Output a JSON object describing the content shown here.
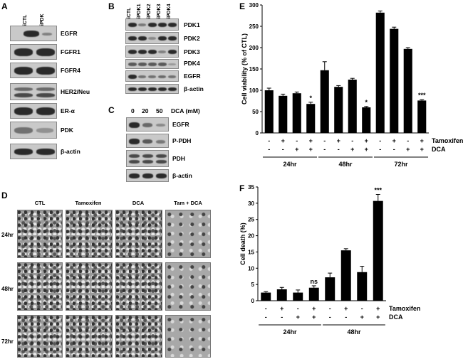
{
  "panels": {
    "A": "A",
    "B": "B",
    "C": "C",
    "D": "D",
    "E": "E",
    "F": "F"
  },
  "panel_a": {
    "lanes": [
      "siCTL",
      "siPDK"
    ],
    "proteins": [
      "EGFR",
      "FGFR1",
      "FGFR4",
      "HER2/Neu",
      "ER-α",
      "PDK",
      "β-actin"
    ]
  },
  "panel_b": {
    "lanes": [
      "siCTL",
      "siPDK1",
      "siPDK2",
      "siPDK3",
      "siPDK4"
    ],
    "proteins": [
      "PDK1",
      "PDK2",
      "PDK3",
      "PDK4",
      "EGFR",
      "β-actin"
    ]
  },
  "panel_c": {
    "doses": [
      "0",
      "20",
      "50"
    ],
    "dose_label": "DCA (mM)",
    "proteins": [
      "EGFR",
      "P-PDH",
      "PDH",
      "β-actin"
    ]
  },
  "panel_d": {
    "columns": [
      "CTL",
      "Tamoxifen",
      "DCA",
      "Tam + DCA"
    ],
    "rows": [
      "24hr",
      "48hr",
      "72hr"
    ]
  },
  "chart_data": [
    {
      "panel": "E",
      "type": "bar",
      "ylabel": "Cell viability (% of CTL)",
      "ylim": [
        0,
        300
      ],
      "yticks": [
        0,
        50,
        100,
        150,
        200,
        250,
        300
      ],
      "categories": [
        "24hr-1",
        "24hr-2",
        "24hr-3",
        "24hr-4",
        "48hr-1",
        "48hr-2",
        "48hr-3",
        "48hr-4",
        "72hr-1",
        "72hr-2",
        "72hr-3",
        "72hr-4"
      ],
      "values": [
        100,
        87,
        93,
        68,
        147,
        108,
        125,
        60,
        282,
        244,
        197,
        76
      ],
      "errors": [
        5,
        4,
        3,
        4,
        20,
        3,
        3,
        2,
        4,
        4,
        3,
        2
      ],
      "tamoxifen": [
        "-",
        "+",
        "-",
        "+",
        "-",
        "+",
        "-",
        "+",
        "-",
        "+",
        "-",
        "+"
      ],
      "dca": [
        "-",
        "-",
        "+",
        "+",
        "-",
        "-",
        "+",
        "+",
        "-",
        "-",
        "+",
        "+"
      ],
      "annotations": [
        "",
        "",
        "",
        "*",
        "",
        "",
        "",
        "*",
        "",
        "",
        "",
        "***"
      ],
      "row_labels": [
        "Tamoxifen",
        "DCA"
      ],
      "groups": [
        "24hr",
        "48hr",
        "72hr"
      ]
    },
    {
      "panel": "F",
      "type": "bar",
      "ylabel": "Cell death (%)",
      "ylim": [
        0,
        35
      ],
      "yticks": [
        0,
        5,
        10,
        15,
        20,
        25,
        30,
        35
      ],
      "categories": [
        "24hr-1",
        "24hr-2",
        "24hr-3",
        "24hr-4",
        "48hr-1",
        "48hr-2",
        "48hr-3",
        "48hr-4"
      ],
      "values": [
        2.5,
        3.5,
        2.5,
        4.0,
        7.2,
        15.5,
        8.8,
        30.7
      ],
      "errors": [
        0.3,
        0.6,
        0.8,
        0.6,
        1.3,
        0.5,
        1.8,
        2.0
      ],
      "tamoxifen": [
        "-",
        "+",
        "-",
        "+",
        "-",
        "+",
        "-",
        "+"
      ],
      "dca": [
        "-",
        "-",
        "+",
        "+",
        "-",
        "-",
        "+",
        "+"
      ],
      "annotations": [
        "",
        "",
        "",
        "ns",
        "",
        "",
        "",
        "***"
      ],
      "row_labels": [
        "Tamoxifen",
        "DCA"
      ],
      "groups": [
        "24hr",
        "48hr"
      ]
    }
  ]
}
